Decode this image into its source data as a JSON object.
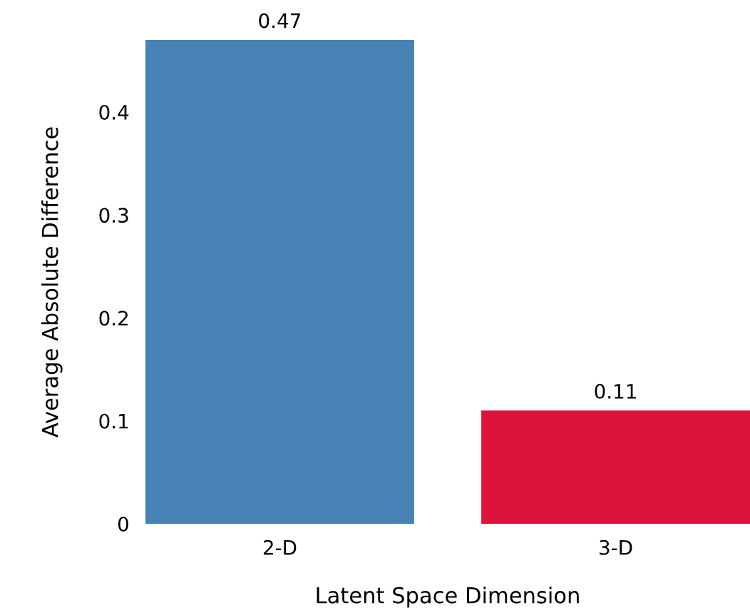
{
  "chart_data": {
    "type": "bar",
    "xlabel": "Latent Space Dimension",
    "ylabel": "Average Absolute Difference",
    "categories": [
      "2-D",
      "3-D"
    ],
    "values": [
      0.47,
      0.11
    ],
    "colors": [
      "#4682b4",
      "#dc143c"
    ],
    "ylim": [
      0,
      0.47
    ],
    "yticks": [
      0,
      0.1,
      0.2,
      0.3,
      0.4
    ],
    "data_labels": true,
    "grid": false
  }
}
